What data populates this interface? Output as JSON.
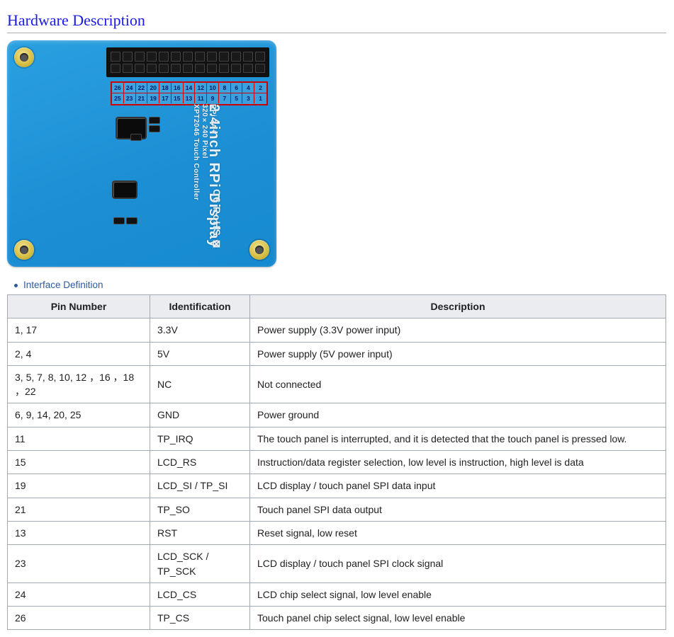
{
  "section_title": "Hardware Description",
  "bullet_label": "Interface Definition",
  "board": {
    "silk_big": "2.4inch RPi Display",
    "silk_small_lines": "RPi 3A+\n320×240 Pixel\nXPT2046 Touch Controller",
    "ce_text": "C€ RoHS ⊠",
    "pin_grid_top": [
      "26",
      "24",
      "22",
      "20",
      "18",
      "16",
      "14",
      "12",
      "10",
      "8",
      "6",
      "4",
      "2"
    ],
    "pin_grid_bottom": [
      "25",
      "23",
      "21",
      "19",
      "17",
      "15",
      "13",
      "11",
      "9",
      "7",
      "5",
      "3",
      "1"
    ]
  },
  "table": {
    "headers": [
      "Pin Number",
      "Identification",
      "Description"
    ],
    "rows": [
      {
        "pin": "1, 17",
        "id": "3.3V",
        "desc": "Power supply (3.3V power input)"
      },
      {
        "pin": "2, 4",
        "id": "5V",
        "desc": "Power supply (5V power input)"
      },
      {
        "pin": "3, 5, 7, 8, 10, 12 ，16 ，18 ，22",
        "id": "NC",
        "desc": "Not connected"
      },
      {
        "pin": "6, 9, 14, 20, 25",
        "id": "GND",
        "desc": "Power ground"
      },
      {
        "pin": "11",
        "id": "TP_IRQ",
        "desc": "The touch panel is interrupted, and it is detected that the touch panel is pressed low."
      },
      {
        "pin": "15",
        "id": "LCD_RS",
        "desc": "Instruction/data register selection, low level is instruction, high level is data"
      },
      {
        "pin": "19",
        "id": "LCD_SI / TP_SI",
        "desc": "LCD display / touch panel SPI data input"
      },
      {
        "pin": "21",
        "id": "TP_SO",
        "desc": "Touch panel SPI data output"
      },
      {
        "pin": "13",
        "id": "RST",
        "desc": "Reset signal, low reset"
      },
      {
        "pin": "23",
        "id": "LCD_SCK / TP_SCK",
        "desc": "LCD display / touch panel SPI clock signal"
      },
      {
        "pin": "24",
        "id": "LCD_CS",
        "desc": "LCD chip select signal, low level enable"
      },
      {
        "pin": "26",
        "id": "TP_CS",
        "desc": "Touch panel chip select signal, low level enable"
      }
    ]
  }
}
